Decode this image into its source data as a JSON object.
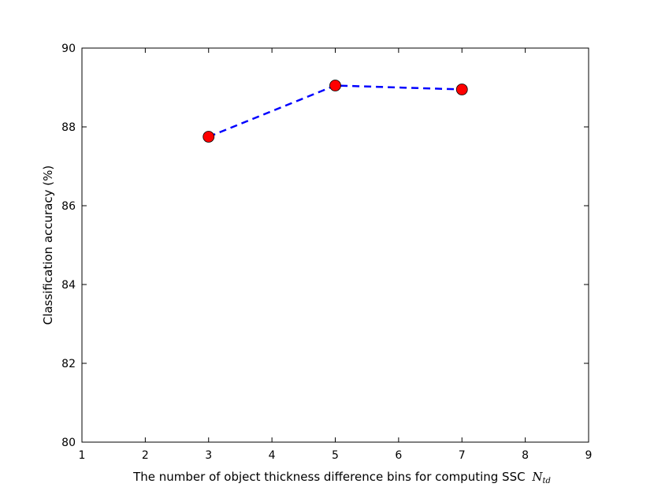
{
  "chart_data": {
    "type": "line",
    "title": "",
    "xlabel": "The number of object thickness difference bins for computing SSC",
    "xlabel_math_symbol": "N",
    "xlabel_math_subscript": "td",
    "ylabel": "Classification accuracy (%)",
    "xlim": [
      1,
      9
    ],
    "ylim": [
      80,
      90
    ],
    "xticks": [
      1,
      2,
      3,
      4,
      5,
      6,
      7,
      8,
      9
    ],
    "yticks": [
      80,
      82,
      84,
      86,
      88,
      90
    ],
    "x": [
      3,
      5,
      7
    ],
    "series": [
      {
        "values": [
          87.75,
          89.05,
          88.95
        ],
        "line_color": "#0000ff",
        "line_style": "dashed",
        "marker": "circle",
        "marker_color": "#ff0000"
      }
    ],
    "grid": false,
    "legend": "none"
  }
}
